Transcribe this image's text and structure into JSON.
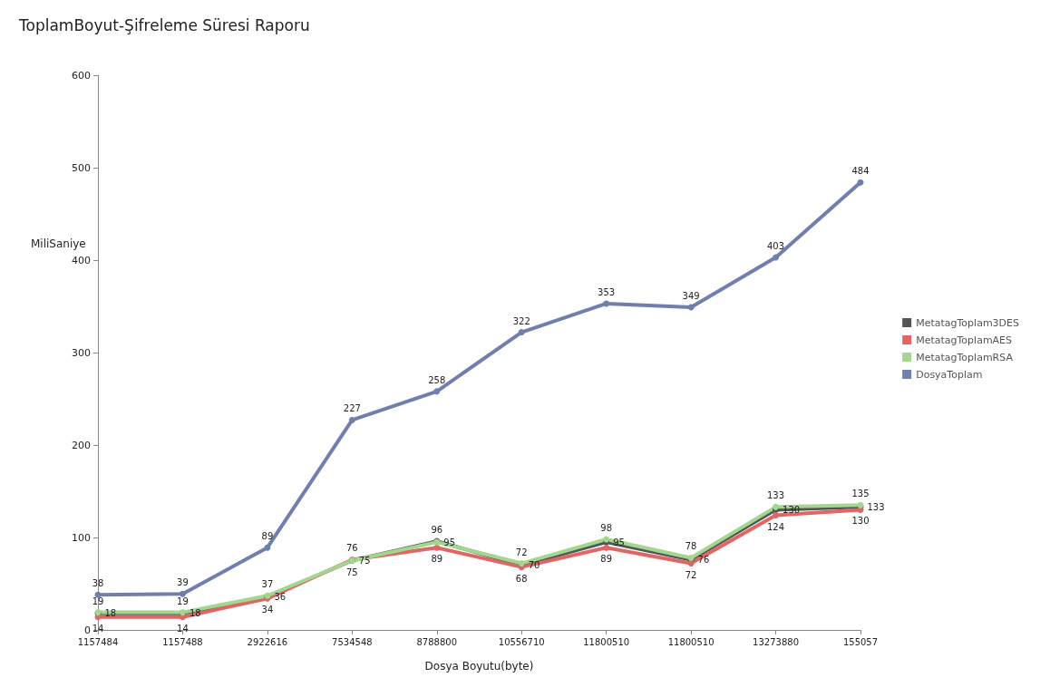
{
  "chart_data": {
    "type": "line",
    "title": "ToplamBoyut-Şifreleme Süresi Raporu",
    "xlabel": "Dosya Boyutu(byte)",
    "ylabel": "MiliSaniye",
    "categories": [
      "1157484",
      "1157488",
      "2922616",
      "7534548",
      "8788800",
      "10556710",
      "11800510",
      "11800510",
      "13273880",
      "155057"
    ],
    "series": [
      {
        "name": "MetatagToplam3DES",
        "color": "#555555",
        "values": [
          18,
          18,
          36,
          75,
          96,
          70,
          95,
          76,
          130,
          133
        ]
      },
      {
        "name": "MetatagToplamAES",
        "color": "#e06666",
        "values": [
          14,
          14,
          34,
          76,
          89,
          68,
          89,
          72,
          124,
          130
        ]
      },
      {
        "name": "MetatagToplamRSA",
        "color": "#a3d68f",
        "values": [
          19,
          19,
          37,
          75,
          95,
          72,
          98,
          78,
          133,
          135
        ]
      },
      {
        "name": "DosyaToplam",
        "color": "#6f7fae",
        "values": [
          38,
          39,
          89,
          227,
          258,
          322,
          353,
          349,
          403,
          484
        ]
      }
    ],
    "ylim": [
      0,
      600
    ],
    "yticks": [
      0,
      100,
      200,
      300,
      400,
      500,
      600
    ],
    "grid": false,
    "legend": "right",
    "marker": "circle",
    "line_style": "solid",
    "data_labels": true
  }
}
